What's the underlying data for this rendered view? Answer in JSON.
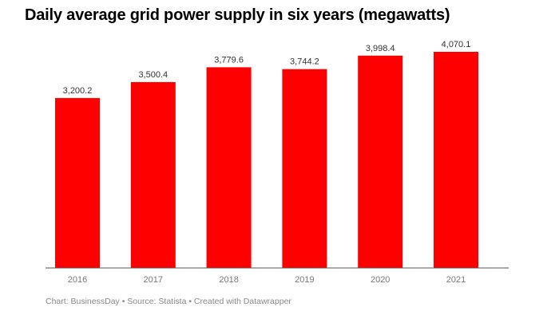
{
  "chart_data": {
    "type": "bar",
    "title": "Daily average grid power supply in six years (megawatts)",
    "categories": [
      "2016",
      "2017",
      "2018",
      "2019",
      "2020",
      "2021"
    ],
    "values": [
      3200.2,
      3500.4,
      3779.6,
      3744.2,
      3998.4,
      4070.1
    ],
    "value_labels": [
      "3,200.2",
      "3,500.4",
      "3,779.6",
      "3,744.2",
      "3,998.4",
      "4,070.1"
    ],
    "xlabel": "",
    "ylabel": "",
    "ylim": [
      0,
      4070.1
    ],
    "bar_color": "#ff0000",
    "grid": false,
    "footer": "Chart: BusinessDay • Source: Statista • Created with Datawrapper"
  }
}
